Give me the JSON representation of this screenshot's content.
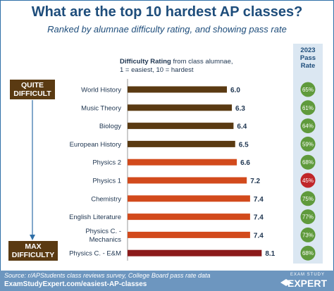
{
  "header": {
    "title": "What are the top 10 hardest AP classes?",
    "subtitle": "Ranked by alumnae difficulty rating, and showing pass rate"
  },
  "legend": {
    "bold": "Difficulty Rating",
    "rest": " from class alumnae,",
    "line2": "1 = easiest, 10 = hardest"
  },
  "pass_header": {
    "line1": "2023",
    "line2": "Pass",
    "line3": "Rate"
  },
  "sidebar": {
    "top_label_line1": "QUITE",
    "top_label_line2": "DIFFICULT",
    "bottom_label_line1": "MAX",
    "bottom_label_line2": "DIFFICULTY"
  },
  "footer": {
    "source": "Source: r/APStudents class reviews survey, College Board pass rate data",
    "url": "ExamStudyExpert.com/easiest-AP-classes",
    "logo_top": "EXAM STUDY",
    "logo_main": "EXPERT"
  },
  "colors": {
    "title": "#1e4d7b",
    "bar_brown": "#5a3a12",
    "bar_orange": "#d24a1c",
    "bar_red": "#8c1a1a",
    "circle_green": "#5f9a3c",
    "circle_red": "#c0262a",
    "pass_panel": "#dbe7f2"
  },
  "chart_data": {
    "type": "bar",
    "orientation": "horizontal",
    "title": "What are the top 10 hardest AP classes?",
    "categories": [
      "World History",
      "Music Theory",
      "Biology",
      "European History",
      "Physics 2",
      "Physics 1",
      "Chemistry",
      "English Literature",
      "Physics C. - Mechanics",
      "Physics C. - E&M"
    ],
    "category_lines": [
      [
        "World History"
      ],
      [
        "Music Theory"
      ],
      [
        "Biology"
      ],
      [
        "European History"
      ],
      [
        "Physics 2"
      ],
      [
        "Physics 1"
      ],
      [
        "Chemistry"
      ],
      [
        "English Literature"
      ],
      [
        "Physics C. -",
        "Mechanics"
      ],
      [
        "Physics C. - E&M"
      ]
    ],
    "values": [
      6.0,
      6.3,
      6.4,
      6.5,
      6.6,
      7.2,
      7.4,
      7.4,
      7.4,
      8.1
    ],
    "value_labels": [
      "6.0",
      "6.3",
      "6.4",
      "6.5",
      "6.6",
      "7.2",
      "7.4",
      "7.4",
      "7.4",
      "8.1"
    ],
    "bar_colors": [
      "brown",
      "brown",
      "brown",
      "brown",
      "orange",
      "orange",
      "orange",
      "orange",
      "orange",
      "red"
    ],
    "pass_rates": [
      "65%",
      "61%",
      "64%",
      "59%",
      "68%",
      "45%",
      "75%",
      "77%",
      "73%",
      "68%"
    ],
    "pass_colors": [
      "green",
      "green",
      "green",
      "green",
      "green",
      "red",
      "green",
      "green",
      "green",
      "green"
    ],
    "xlim": [
      0,
      10
    ],
    "grid": false,
    "legend": "top-center"
  }
}
